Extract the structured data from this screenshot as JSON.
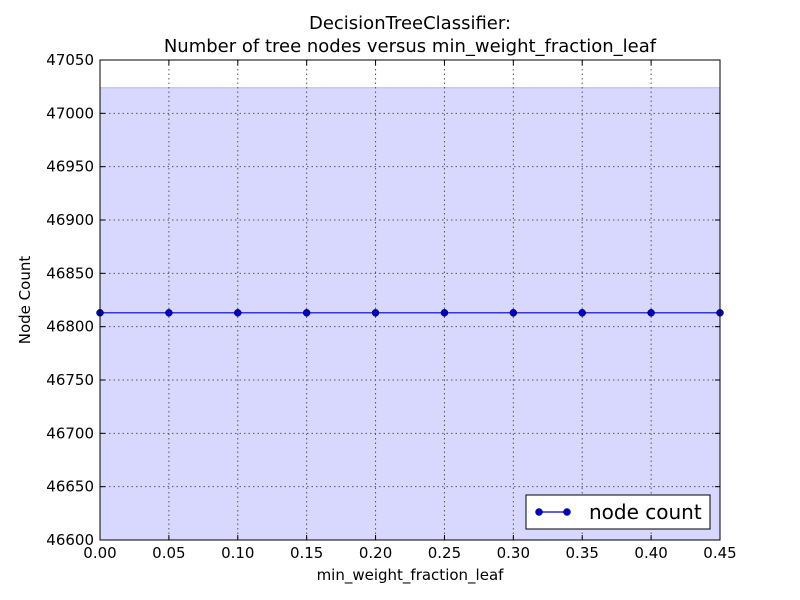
{
  "chart_data": {
    "type": "line",
    "title": "DecisionTreeClassifier:",
    "subtitle": "Number of tree nodes versus min_weight_fraction_leaf",
    "xlabel": "min_weight_fraction_leaf",
    "ylabel": "Node Count",
    "xlim": [
      0.0,
      0.45
    ],
    "ylim": [
      46600,
      47050
    ],
    "xticks": [
      "0.00",
      "0.05",
      "0.10",
      "0.15",
      "0.20",
      "0.25",
      "0.30",
      "0.35",
      "0.40",
      "0.45"
    ],
    "yticks": [
      "46600",
      "46650",
      "46700",
      "46750",
      "46800",
      "46850",
      "46900",
      "46950",
      "47000",
      "47050"
    ],
    "grid": true,
    "legend_position": "lower-right",
    "band": {
      "lower": 46600,
      "upper": 47024,
      "color": "#d8d8ff"
    },
    "series": [
      {
        "name": "node count",
        "color": "#0000cc",
        "marker": "circle",
        "x": [
          0.0,
          0.05,
          0.1,
          0.15,
          0.2,
          0.25,
          0.3,
          0.35,
          0.4,
          0.45
        ],
        "y": [
          46813,
          46813,
          46813,
          46813,
          46813,
          46813,
          46813,
          46813,
          46813,
          46813
        ]
      }
    ]
  }
}
